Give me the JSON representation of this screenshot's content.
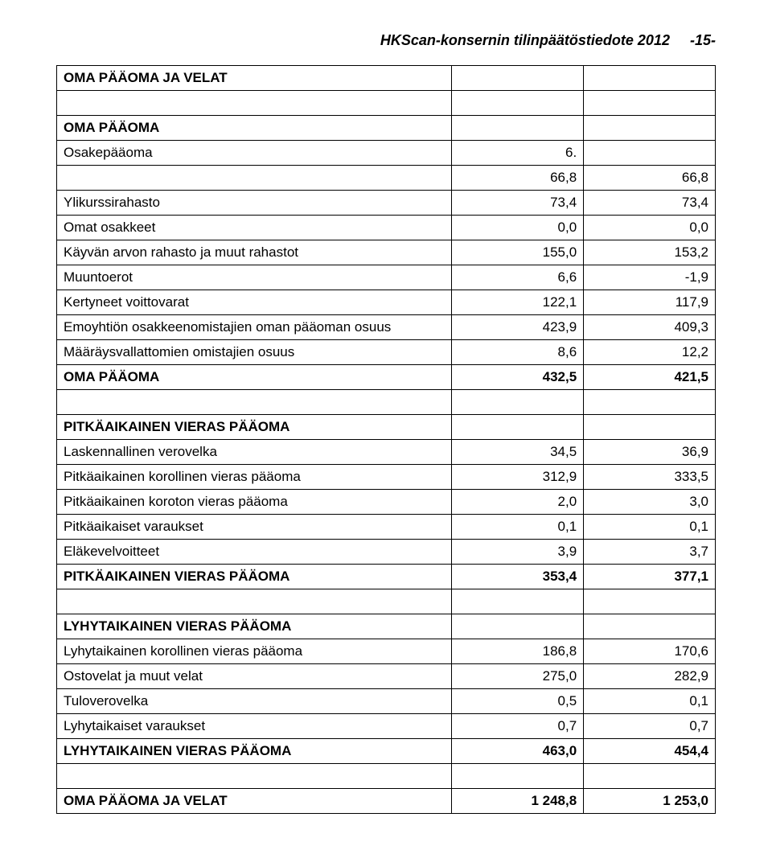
{
  "header": {
    "title": "HKScan-konsernin tilinpäätöstiedote 2012",
    "page": "-15-"
  },
  "columns": {
    "label_width": "60%",
    "num_width": "20%"
  },
  "colors": {
    "background": "#ffffff",
    "text": "#000000",
    "border": "#000000"
  },
  "fonts": {
    "body_family": "Arial, sans-serif",
    "body_size": 17,
    "header_size": 18
  },
  "rows": [
    {
      "label": "OMA PÄÄOMA JA VELAT",
      "c1": "",
      "c2": "",
      "bold": true
    },
    {
      "label": "",
      "c1": "",
      "c2": ""
    },
    {
      "label": "OMA PÄÄOMA",
      "c1": "",
      "c2": "",
      "bold": true
    },
    {
      "label": "Osakepääoma",
      "c1": "6.",
      "c2": ""
    },
    {
      "label": "",
      "c1": "66,8",
      "c2": "66,8"
    },
    {
      "label": "Ylikurssirahasto",
      "c1": "73,4",
      "c2": "73,4"
    },
    {
      "label": "Omat osakkeet",
      "c1": "0,0",
      "c2": "0,0"
    },
    {
      "label": "Käyvän arvon rahasto ja muut rahastot",
      "c1": "155,0",
      "c2": "153,2"
    },
    {
      "label": "Muuntoerot",
      "c1": "6,6",
      "c2": "-1,9"
    },
    {
      "label": "Kertyneet voittovarat",
      "c1": "122,1",
      "c2": "117,9"
    },
    {
      "label": "Emoyhtiön osakkeenomistajien oman pääoman osuus",
      "c1": "423,9",
      "c2": "409,3"
    },
    {
      "label": "Määräysvallattomien omistajien osuus",
      "c1": "8,6",
      "c2": "12,2"
    },
    {
      "label": "OMA PÄÄOMA",
      "c1": "432,5",
      "c2": "421,5",
      "bold": true
    },
    {
      "label": "",
      "c1": "",
      "c2": ""
    },
    {
      "label": "PITKÄAIKAINEN VIERAS PÄÄOMA",
      "c1": "",
      "c2": "",
      "bold": true
    },
    {
      "label": "Laskennallinen verovelka",
      "c1": "34,5",
      "c2": "36,9"
    },
    {
      "label": "Pitkäaikainen korollinen vieras pääoma",
      "c1": "312,9",
      "c2": "333,5"
    },
    {
      "label": "Pitkäaikainen koroton vieras pääoma",
      "c1": "2,0",
      "c2": "3,0"
    },
    {
      "label": "Pitkäaikaiset varaukset",
      "c1": "0,1",
      "c2": "0,1"
    },
    {
      "label": "Eläkevelvoitteet",
      "c1": "3,9",
      "c2": "3,7"
    },
    {
      "label": "PITKÄAIKAINEN VIERAS PÄÄOMA",
      "c1": "353,4",
      "c2": "377,1",
      "bold": true
    },
    {
      "label": "",
      "c1": "",
      "c2": ""
    },
    {
      "label": "LYHYTAIKAINEN VIERAS PÄÄOMA",
      "c1": "",
      "c2": "",
      "bold": true
    },
    {
      "label": "Lyhytaikainen korollinen vieras pääoma",
      "c1": "186,8",
      "c2": "170,6"
    },
    {
      "label": "Ostovelat ja muut velat",
      "c1": "275,0",
      "c2": "282,9"
    },
    {
      "label": "Tuloverovelka",
      "c1": "0,5",
      "c2": "0,1"
    },
    {
      "label": "Lyhytaikaiset varaukset",
      "c1": "0,7",
      "c2": "0,7"
    },
    {
      "label": "LYHYTAIKAINEN VIERAS PÄÄOMA",
      "c1": "463,0",
      "c2": "454,4",
      "bold": true
    },
    {
      "label": "",
      "c1": "",
      "c2": ""
    },
    {
      "label": "OMA PÄÄOMA JA VELAT",
      "c1": "1 248,8",
      "c2": "1 253,0",
      "bold": true
    }
  ]
}
